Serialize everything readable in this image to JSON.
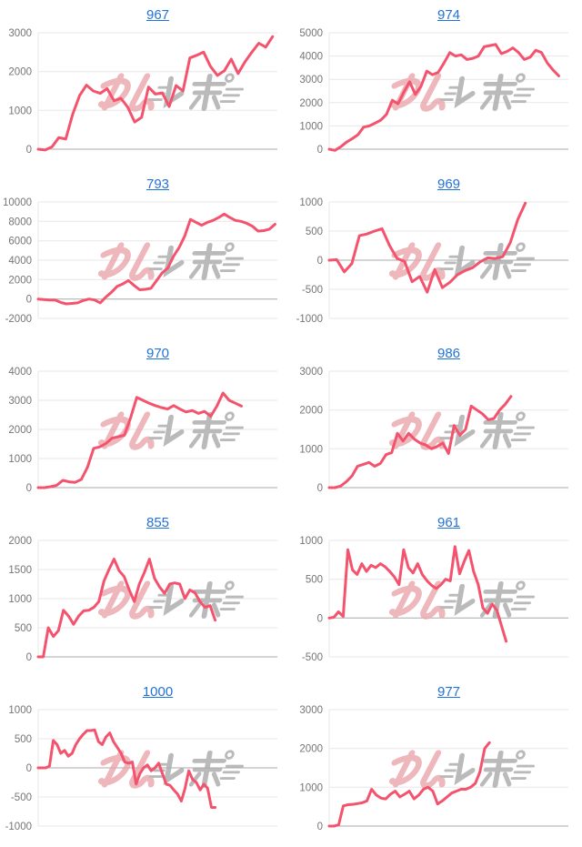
{
  "page": {
    "background": "#ffffff"
  },
  "chart_style": {
    "line_color": "#f4536e",
    "grid_color": "#e7e7e7",
    "zero_line_color": "#a9a9a9",
    "tick_label_color": "#757575",
    "title_link_color": "#2273d8",
    "watermark_pink": "#e9a6ac",
    "watermark_gray": "#aaaaaa"
  },
  "watermark": {
    "name": "minrepo-logo-watermark"
  },
  "chart_data": [
    {
      "type": "line",
      "title": "967",
      "xlabel": "",
      "ylabel": "",
      "ylim": [
        0,
        3000
      ],
      "yticks": [
        0,
        1000,
        2000,
        3000
      ],
      "grid": true,
      "legend": false,
      "end_frac": 0.98,
      "values": [
        0,
        -20,
        60,
        300,
        260,
        900,
        1380,
        1650,
        1500,
        1440,
        1560,
        1250,
        1310,
        1080,
        700,
        820,
        1600,
        1420,
        1450,
        1100,
        1640,
        1500,
        2350,
        2420,
        2500,
        2130,
        1900,
        2020,
        2320,
        1950,
        2250,
        2500,
        2730,
        2630,
        2900
      ]
    },
    {
      "type": "line",
      "title": "974",
      "xlabel": "",
      "ylabel": "",
      "ylim": [
        0,
        5000
      ],
      "yticks": [
        0,
        1000,
        2000,
        3000,
        4000,
        5000
      ],
      "grid": true,
      "legend": false,
      "end_frac": 0.96,
      "values": [
        0,
        -50,
        100,
        300,
        450,
        620,
        950,
        1000,
        1120,
        1250,
        1500,
        2100,
        1950,
        2450,
        2900,
        2350,
        2700,
        3350,
        3200,
        3300,
        3700,
        4150,
        4000,
        4050,
        3850,
        3900,
        4000,
        4400,
        4450,
        4500,
        4100,
        4200,
        4350,
        4150,
        3850,
        3950,
        4250,
        4150,
        3700,
        3400,
        3150
      ]
    },
    {
      "type": "line",
      "title": "793",
      "xlabel": "",
      "ylabel": "",
      "ylim": [
        -2000,
        10000
      ],
      "yticks": [
        -2000,
        0,
        2000,
        4000,
        6000,
        8000,
        10000
      ],
      "grid": true,
      "legend": false,
      "end_frac": 0.99,
      "values": [
        0,
        -50,
        -100,
        -100,
        -350,
        -500,
        -450,
        -400,
        -150,
        0,
        -100,
        -400,
        200,
        700,
        1300,
        1550,
        1900,
        1400,
        950,
        1000,
        1100,
        1900,
        2700,
        3200,
        4400,
        5300,
        6500,
        8200,
        7900,
        7600,
        7900,
        8100,
        8400,
        8750,
        8400,
        8100,
        8000,
        7800,
        7500,
        7000,
        7050,
        7200,
        7700
      ]
    },
    {
      "type": "line",
      "title": "969",
      "xlabel": "",
      "ylabel": "",
      "ylim": [
        -1000,
        1000
      ],
      "yticks": [
        -1000,
        -500,
        0,
        500,
        1000
      ],
      "grid": true,
      "legend": false,
      "end_frac": 0.82,
      "values": [
        0,
        10,
        -200,
        -60,
        420,
        450,
        500,
        540,
        250,
        30,
        -20,
        -370,
        -280,
        -550,
        -160,
        -470,
        -380,
        -250,
        -180,
        -130,
        -30,
        40,
        30,
        60,
        300,
        700,
        980
      ]
    },
    {
      "type": "line",
      "title": "970",
      "xlabel": "",
      "ylabel": "",
      "ylim": [
        0,
        4000
      ],
      "yticks": [
        0,
        1000,
        2000,
        3000,
        4000
      ],
      "grid": true,
      "legend": false,
      "end_frac": 0.85,
      "values": [
        0,
        0,
        30,
        80,
        250,
        200,
        180,
        280,
        700,
        1350,
        1400,
        1520,
        1700,
        1750,
        1800,
        2400,
        3100,
        3000,
        2900,
        2820,
        2750,
        2700,
        2820,
        2700,
        2600,
        2650,
        2550,
        2620,
        2450,
        2800,
        3250,
        3000,
        2900,
        2800
      ]
    },
    {
      "type": "line",
      "title": "986",
      "xlabel": "",
      "ylabel": "",
      "ylim": [
        0,
        3000
      ],
      "yticks": [
        0,
        1000,
        2000,
        3000
      ],
      "grid": true,
      "legend": false,
      "end_frac": 0.76,
      "values": [
        0,
        0,
        40,
        150,
        300,
        550,
        600,
        650,
        550,
        620,
        850,
        900,
        1400,
        1200,
        1400,
        1250,
        1150,
        1100,
        1000,
        1060,
        1150,
        880,
        1600,
        1350,
        1500,
        2100,
        2000,
        1900,
        1750,
        1780,
        2000,
        2150,
        2350
      ]
    },
    {
      "type": "line",
      "title": "855",
      "xlabel": "",
      "ylabel": "",
      "ylim": [
        0,
        2000
      ],
      "yticks": [
        0,
        500,
        1000,
        1500,
        2000
      ],
      "grid": true,
      "legend": false,
      "end_frac": 0.74,
      "values": [
        0,
        0,
        500,
        350,
        450,
        800,
        700,
        560,
        700,
        790,
        800,
        850,
        950,
        1300,
        1500,
        1680,
        1480,
        1380,
        1150,
        950,
        1250,
        1450,
        1680,
        1350,
        1200,
        1090,
        1250,
        1270,
        1250,
        1000,
        1150,
        1100,
        950,
        850,
        880,
        630
      ]
    },
    {
      "type": "line",
      "title": "961",
      "xlabel": "",
      "ylabel": "",
      "ylim": [
        -500,
        1000
      ],
      "yticks": [
        -500,
        0,
        500,
        1000
      ],
      "grid": true,
      "legend": false,
      "end_frac": 0.74,
      "values": [
        0,
        10,
        80,
        20,
        880,
        620,
        560,
        700,
        600,
        680,
        650,
        700,
        660,
        600,
        530,
        430,
        880,
        650,
        580,
        700,
        560,
        480,
        420,
        380,
        430,
        500,
        480,
        920,
        570,
        730,
        870,
        600,
        430,
        130,
        60,
        180,
        100,
        -100,
        -300
      ]
    },
    {
      "type": "line",
      "title": "1000",
      "xlabel": "",
      "ylabel": "",
      "ylim": [
        -1000,
        1000
      ],
      "yticks": [
        -1000,
        -500,
        0,
        500,
        1000
      ],
      "grid": true,
      "legend": false,
      "end_frac": 0.74,
      "values": [
        0,
        0,
        0,
        30,
        470,
        400,
        250,
        300,
        200,
        250,
        400,
        500,
        580,
        640,
        640,
        650,
        450,
        400,
        530,
        600,
        450,
        350,
        250,
        100,
        80,
        100,
        -280,
        -100,
        0,
        50,
        -50,
        0,
        80,
        -100,
        -280,
        -300,
        -380,
        -450,
        -570,
        -350,
        -50,
        -200,
        -250,
        -380,
        -280,
        -350,
        -680,
        -680
      ]
    },
    {
      "type": "line",
      "title": "977",
      "xlabel": "",
      "ylabel": "",
      "ylim": [
        0,
        3000
      ],
      "yticks": [
        0,
        1000,
        2000,
        3000
      ],
      "grid": true,
      "legend": false,
      "end_frac": 0.67,
      "values": [
        0,
        0,
        30,
        520,
        550,
        560,
        580,
        600,
        650,
        950,
        800,
        720,
        700,
        820,
        900,
        750,
        820,
        900,
        700,
        800,
        950,
        1000,
        900,
        570,
        650,
        750,
        850,
        900,
        950,
        950,
        1000,
        1100,
        1400,
        2000,
        2150
      ]
    }
  ]
}
